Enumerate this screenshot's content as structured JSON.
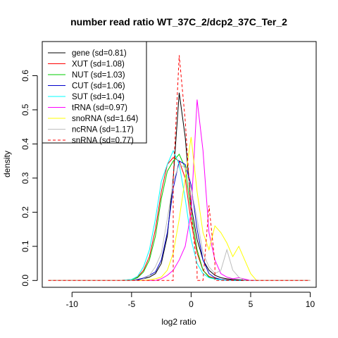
{
  "chart_data": {
    "type": "line",
    "title": "number read ratio WT_37C_2/dcp2_37C_Ter_2",
    "xlabel": "log2 ratio",
    "ylabel": "density",
    "xlim": [
      -12.5,
      10.5
    ],
    "ylim": [
      -0.02,
      0.7
    ],
    "xticks": [
      -10,
      -5,
      0,
      5,
      10
    ],
    "yticks": [
      0.0,
      0.1,
      0.2,
      0.3,
      0.4,
      0.5,
      0.6
    ],
    "legend_position": "top-left",
    "series": [
      {
        "name": "gene (sd=0.81)",
        "color": "#000000",
        "dash": "solid",
        "x": [
          -12,
          -6,
          -5.0,
          -4.5,
          -4.0,
          -3.5,
          -3.0,
          -2.5,
          -2.0,
          -1.5,
          -1.0,
          -0.5,
          0.0,
          0.5,
          1.0,
          1.5,
          2.0,
          2.5,
          3.0,
          3.5,
          4.0,
          4.5,
          5.0,
          10
        ],
        "y": [
          0,
          0,
          0,
          0.002,
          0.005,
          0.01,
          0.02,
          0.05,
          0.13,
          0.3,
          0.55,
          0.42,
          0.22,
          0.12,
          0.06,
          0.03,
          0.015,
          0.008,
          0.005,
          0.003,
          0.002,
          0.001,
          0,
          0
        ]
      },
      {
        "name": "XUT (sd=1.08)",
        "color": "#ff0000",
        "dash": "solid",
        "x": [
          -12,
          -6,
          -5.0,
          -4.5,
          -4.0,
          -3.5,
          -3.0,
          -2.5,
          -2.0,
          -1.5,
          -1.0,
          -0.5,
          0.0,
          0.5,
          1.0,
          1.5,
          2.0,
          2.5,
          3.0,
          3.5,
          4.0,
          10
        ],
        "y": [
          0,
          0,
          0.003,
          0.01,
          0.03,
          0.07,
          0.15,
          0.26,
          0.34,
          0.36,
          0.35,
          0.3,
          0.17,
          0.08,
          0.03,
          0.012,
          0.006,
          0.003,
          0.002,
          0.001,
          0,
          0
        ]
      },
      {
        "name": "NUT (sd=1.03)",
        "color": "#00cc00",
        "dash": "solid",
        "x": [
          -12,
          -6,
          -5.0,
          -4.5,
          -4.0,
          -3.5,
          -3.0,
          -2.5,
          -2.0,
          -1.5,
          -1.0,
          -0.5,
          0.0,
          0.5,
          1.0,
          1.5,
          2.0,
          2.5,
          3.0,
          3.5,
          10
        ],
        "y": [
          0,
          0,
          0.002,
          0.008,
          0.025,
          0.06,
          0.13,
          0.24,
          0.32,
          0.35,
          0.37,
          0.33,
          0.2,
          0.09,
          0.03,
          0.01,
          0.005,
          0.002,
          0.001,
          0,
          0
        ]
      },
      {
        "name": "CUT (sd=1.06)",
        "color": "#0000cc",
        "dash": "solid",
        "x": [
          -12,
          -6,
          -5.0,
          -4.5,
          -4.0,
          -3.5,
          -3.0,
          -2.5,
          -2.0,
          -1.5,
          -1.0,
          -0.5,
          0.0,
          0.5,
          1.0,
          1.5,
          2.0,
          2.5,
          3.0,
          3.5,
          10
        ],
        "y": [
          0,
          0,
          0,
          0.003,
          0.007,
          0.015,
          0.025,
          0.06,
          0.14,
          0.27,
          0.35,
          0.34,
          0.28,
          0.15,
          0.06,
          0.02,
          0.008,
          0.003,
          0.001,
          0,
          0
        ]
      },
      {
        "name": "SUT (sd=1.04)",
        "color": "#00ffff",
        "dash": "solid",
        "x": [
          -12,
          -6,
          -5.0,
          -4.5,
          -4.0,
          -3.5,
          -3.0,
          -2.5,
          -2.0,
          -1.5,
          -1.0,
          -0.5,
          0.0,
          0.5,
          1.0,
          1.5,
          2.0,
          2.5,
          3.0,
          10
        ],
        "y": [
          0,
          0,
          0.003,
          0.012,
          0.04,
          0.09,
          0.18,
          0.29,
          0.34,
          0.38,
          0.34,
          0.24,
          0.12,
          0.05,
          0.02,
          0.008,
          0.004,
          0.002,
          0,
          0
        ]
      },
      {
        "name": "tRNA (sd=0.97)",
        "color": "#ff00ff",
        "dash": "solid",
        "x": [
          -12,
          -6,
          -3.0,
          -2.5,
          -2.0,
          -1.5,
          -1.0,
          -0.5,
          0.0,
          0.5,
          1.0,
          1.5,
          2.0,
          2.5,
          3.0,
          3.5,
          4.0,
          4.5,
          5.0,
          10
        ],
        "y": [
          0,
          0,
          0,
          0.005,
          0.015,
          0.03,
          0.06,
          0.1,
          0.2,
          0.53,
          0.38,
          0.14,
          0.06,
          0.02,
          0.01,
          0.005,
          0.008,
          0.004,
          0,
          0
        ]
      },
      {
        "name": "snoRNA (sd=1.64)",
        "color": "#ffff00",
        "dash": "solid",
        "x": [
          -12,
          -6,
          -4.0,
          -3.5,
          -3.0,
          -2.5,
          -2.0,
          -1.5,
          -1.0,
          -0.5,
          0.0,
          0.5,
          1.0,
          1.5,
          2.0,
          2.5,
          3.0,
          3.5,
          4.0,
          4.5,
          5.0,
          5.5,
          10
        ],
        "y": [
          0,
          0,
          0,
          0.002,
          0.005,
          0.01,
          0.03,
          0.08,
          0.18,
          0.3,
          0.42,
          0.26,
          0.14,
          0.09,
          0.16,
          0.14,
          0.11,
          0.07,
          0.1,
          0.06,
          0.02,
          0,
          0
        ]
      },
      {
        "name": "ncRNA (sd=1.17)",
        "color": "#bebebe",
        "dash": "solid",
        "x": [
          -12,
          -6,
          -4.5,
          -4.0,
          -3.5,
          -3.0,
          -2.5,
          -2.0,
          -1.5,
          -1.0,
          -0.5,
          0.0,
          0.5,
          1.0,
          1.5,
          2.0,
          2.5,
          3.0,
          3.5,
          4.0,
          4.5,
          10
        ],
        "y": [
          0,
          0,
          0,
          0.005,
          0.015,
          0.04,
          0.08,
          0.18,
          0.29,
          0.34,
          0.33,
          0.27,
          0.18,
          0.08,
          0.04,
          0.02,
          0.03,
          0.09,
          0.03,
          0.01,
          0,
          0
        ]
      },
      {
        "name": "snRNA (sd=0.77)",
        "color": "#ff0000",
        "dash": "dashed",
        "x": [
          -12,
          -1.5,
          -1.5,
          -1.0,
          -0.5,
          0.0,
          0.5,
          0.5,
          1.0,
          1.5,
          2.0,
          2.0,
          10
        ],
        "y": [
          0,
          0,
          0.3,
          0.66,
          0.47,
          0.2,
          0.03,
          0.0,
          0.0,
          0.22,
          0.05,
          0.0,
          0
        ]
      }
    ]
  }
}
